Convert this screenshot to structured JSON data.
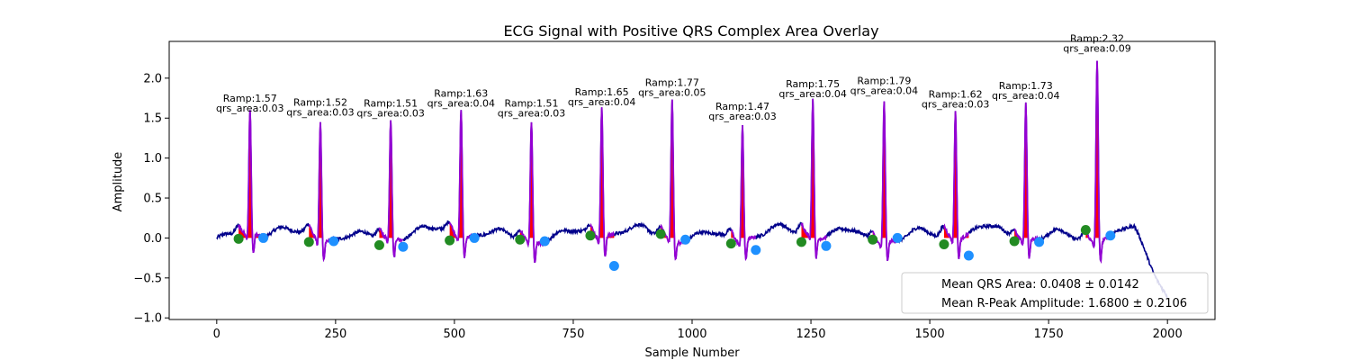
{
  "chart_data": {
    "type": "line",
    "title": "ECG Signal with Positive QRS Complex Area Overlay",
    "xlabel": "Sample Number",
    "ylabel": "Amplitude",
    "xlim": [
      -100,
      2100
    ],
    "ylim": [
      -1.02,
      2.46
    ],
    "x_ticks": [
      0,
      250,
      500,
      750,
      1000,
      1250,
      1500,
      1750,
      2000
    ],
    "y_ticks": [
      -1.0,
      -0.5,
      0.0,
      0.5,
      1.0,
      1.5,
      2.0
    ],
    "x_tick_labels": [
      "0",
      "250",
      "500",
      "750",
      "1000",
      "1250",
      "1500",
      "1750",
      "2000"
    ],
    "y_tick_labels": [
      "−1.0",
      "−0.5",
      "0.0",
      "0.5",
      "1.0",
      "1.5",
      "2.0"
    ],
    "grid": false,
    "colors": {
      "signal": "#00008b",
      "qrs_segment": "#9400d3",
      "qrs_area": "#ff0000",
      "onset_marker": "#228b22",
      "offset_marker": "#1e90ff"
    },
    "beats": [
      {
        "r_x": 70,
        "r_amp": 1.57,
        "qrs_area": 0.03,
        "onset": [
          46,
          -0.01
        ],
        "offset": [
          98,
          0.0
        ],
        "ramp_label": "Ramp:1.57",
        "area_label": "qrs_area:0.03"
      },
      {
        "r_x": 218,
        "r_amp": 1.52,
        "qrs_area": 0.03,
        "onset": [
          194,
          -0.05
        ],
        "offset": [
          246,
          -0.04
        ],
        "ramp_label": "Ramp:1.52",
        "area_label": "qrs_area:0.03"
      },
      {
        "r_x": 366,
        "r_amp": 1.51,
        "qrs_area": 0.03,
        "onset": [
          342,
          -0.09
        ],
        "offset": [
          392,
          -0.11
        ],
        "ramp_label": "Ramp:1.51",
        "area_label": "qrs_area:0.03"
      },
      {
        "r_x": 514,
        "r_amp": 1.63,
        "qrs_area": 0.04,
        "onset": [
          490,
          -0.03
        ],
        "offset": [
          542,
          0.0
        ],
        "ramp_label": "Ramp:1.63",
        "area_label": "qrs_area:0.04"
      },
      {
        "r_x": 662,
        "r_amp": 1.51,
        "qrs_area": 0.03,
        "onset": [
          638,
          -0.02
        ],
        "offset": [
          690,
          -0.04
        ],
        "ramp_label": "Ramp:1.51",
        "area_label": "qrs_area:0.03"
      },
      {
        "r_x": 810,
        "r_amp": 1.65,
        "qrs_area": 0.04,
        "onset": [
          786,
          0.03
        ],
        "offset": [
          836,
          -0.35
        ],
        "ramp_label": "Ramp:1.65",
        "area_label": "qrs_area:0.04"
      },
      {
        "r_x": 958,
        "r_amp": 1.77,
        "qrs_area": 0.05,
        "onset": [
          934,
          0.05
        ],
        "offset": [
          986,
          -0.02
        ],
        "ramp_label": "Ramp:1.77",
        "area_label": "qrs_area:0.05"
      },
      {
        "r_x": 1106,
        "r_amp": 1.47,
        "qrs_area": 0.03,
        "onset": [
          1082,
          -0.07
        ],
        "offset": [
          1134,
          -0.15
        ],
        "ramp_label": "Ramp:1.47",
        "area_label": "qrs_area:0.03"
      },
      {
        "r_x": 1254,
        "r_amp": 1.75,
        "qrs_area": 0.04,
        "onset": [
          1230,
          -0.05
        ],
        "offset": [
          1282,
          -0.1
        ],
        "ramp_label": "Ramp:1.75",
        "area_label": "qrs_area:0.04"
      },
      {
        "r_x": 1404,
        "r_amp": 1.79,
        "qrs_area": 0.04,
        "onset": [
          1380,
          -0.02
        ],
        "offset": [
          1432,
          0.0
        ],
        "ramp_label": "Ramp:1.79",
        "area_label": "qrs_area:0.04"
      },
      {
        "r_x": 1554,
        "r_amp": 1.62,
        "qrs_area": 0.03,
        "onset": [
          1530,
          -0.08
        ],
        "offset": [
          1582,
          -0.22
        ],
        "ramp_label": "Ramp:1.62",
        "area_label": "qrs_area:0.03"
      },
      {
        "r_x": 1702,
        "r_amp": 1.73,
        "qrs_area": 0.04,
        "onset": [
          1678,
          -0.04
        ],
        "offset": [
          1730,
          -0.05
        ],
        "ramp_label": "Ramp:1.73",
        "area_label": "qrs_area:0.04"
      },
      {
        "r_x": 1852,
        "r_amp": 2.32,
        "qrs_area": 0.09,
        "onset": [
          1828,
          0.1
        ],
        "offset": [
          1880,
          0.03
        ],
        "ramp_label": "Ramp:2.32",
        "area_label": "qrs_area:0.09"
      }
    ],
    "legend": {
      "placement": "lower-right",
      "entries": [
        "Mean QRS Area: 0.0408 ± 0.0142",
        "Mean R-Peak Amplitude: 1.6800 ± 0.2106"
      ]
    }
  }
}
